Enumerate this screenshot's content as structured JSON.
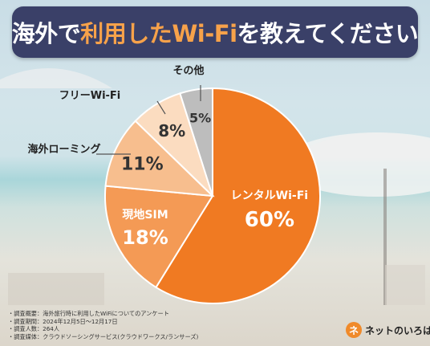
{
  "title": {
    "prefix": "海外で",
    "highlight": "利用した",
    "highlight2": "Wi-Fi",
    "suffix": "を教えてください"
  },
  "chart_data": {
    "type": "pie",
    "title": "海外で利用したWi-Fiを教えてください",
    "slices": [
      {
        "label": "レンタルWi-Fi",
        "value": 60,
        "display": "60%",
        "color": "#f07a22"
      },
      {
        "label": "現地SIM",
        "value": 18,
        "display": "18%",
        "color": "#f49a55"
      },
      {
        "label": "海外ローミング",
        "value": 11,
        "display": "11%",
        "color": "#f7be8e"
      },
      {
        "label": "フリーWi-Fi",
        "value": 8,
        "display": "8%",
        "color": "#fbdcc0"
      },
      {
        "label": "その他",
        "value": 5,
        "display": "5%",
        "color": "#bdbdbd"
      }
    ]
  },
  "survey": {
    "lines": [
      "・調査概要：海外旅行時に利用したWiFiについてのアンケート",
      "・調査期間：2024年12月5日〜12月17日",
      "・調査人数：264人",
      "・調査媒体：クラウドソーシングサービス(クラウドワークス/ランサーズ)"
    ]
  },
  "brand": {
    "mark": "ネ",
    "name": "ネットのいろは"
  },
  "colors": {
    "header_bg": "#3a4068",
    "accent": "#f7a24a"
  }
}
